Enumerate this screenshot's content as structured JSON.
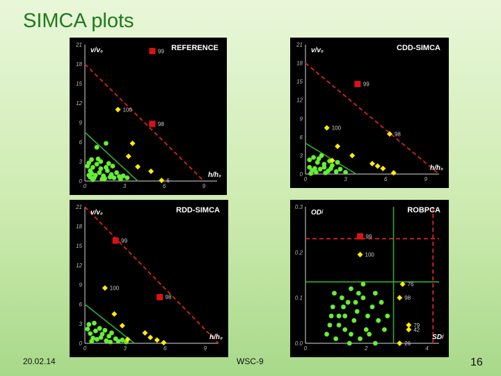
{
  "slide": {
    "title": "SIMCA plots",
    "date": "20.02.14",
    "center_label": "WSC-9",
    "page_number": "16"
  },
  "colors": {
    "panel_bg": "#000000",
    "regular_points": "#66ee33",
    "flagged_points": "#ffee00",
    "extreme_points": "#dd1111",
    "green_boundary": "#33aa33",
    "red_boundary": "#dd2222"
  },
  "chart_data": [
    {
      "type": "scatter",
      "title": "REFERENCE",
      "xlabel": "h/h₀",
      "ylabel": "v/v₀",
      "xlim": [
        0,
        10
      ],
      "ylim": [
        0,
        21
      ],
      "xticks": [
        0,
        3,
        6,
        9
      ],
      "yticks": [
        0,
        3,
        6,
        9,
        12,
        15,
        18,
        21
      ],
      "boundary_green": [
        [
          0,
          7.5
        ],
        [
          4,
          0
        ]
      ],
      "boundary_red": [
        [
          0,
          18
        ],
        [
          9,
          0
        ]
      ],
      "regular": [
        [
          0.3,
          2.8
        ],
        [
          0.5,
          3.3
        ],
        [
          0.9,
          2.6
        ],
        [
          0.4,
          1.6
        ],
        [
          1.2,
          1.9
        ],
        [
          1.6,
          2.1
        ],
        [
          2.1,
          2.3
        ],
        [
          0.7,
          0.5
        ],
        [
          1.4,
          0.8
        ],
        [
          1.9,
          0.6
        ],
        [
          2.6,
          0.7
        ],
        [
          0.4,
          0.6
        ],
        [
          1.1,
          1.3
        ],
        [
          1.7,
          1.6
        ],
        [
          2.4,
          1.3
        ],
        [
          2.9,
          0.8
        ],
        [
          0.8,
          0.9
        ],
        [
          0.6,
          2.1
        ],
        [
          1.5,
          0.4
        ],
        [
          0.3,
          0.9
        ],
        [
          1.0,
          3.4
        ],
        [
          2.2,
          0.5
        ],
        [
          1.6,
          5.8
        ],
        [
          0.9,
          5.2
        ],
        [
          1.2,
          3.0
        ],
        [
          0.6,
          0.2
        ],
        [
          2.0,
          1.0
        ],
        [
          2.7,
          0.3
        ],
        [
          0.5,
          1.2
        ],
        [
          1.3,
          0.3
        ],
        [
          1.8,
          2.7
        ],
        [
          3.2,
          0.5
        ],
        [
          0.2,
          2.3
        ]
      ],
      "flagged": [
        {
          "x": 2.5,
          "y": 11.0,
          "label": "100"
        },
        {
          "x": 3.6,
          "y": 5.8,
          "label": ""
        },
        {
          "x": 3.3,
          "y": 3.8,
          "label": ""
        },
        {
          "x": 4.0,
          "y": 2.2,
          "label": ""
        },
        {
          "x": 5.0,
          "y": 1.5,
          "label": ""
        },
        {
          "x": 5.8,
          "y": 0.1,
          "label": "6"
        }
      ],
      "extreme": [
        {
          "x": 5.1,
          "y": 20.0,
          "label": "99"
        },
        {
          "x": 5.1,
          "y": 8.8,
          "label": "98"
        }
      ]
    },
    {
      "type": "scatter",
      "title": "CDD-SIMCA",
      "xlabel": "h/h₀",
      "ylabel": "v/v₀",
      "xlim": [
        0,
        10
      ],
      "ylim": [
        0,
        21
      ],
      "xticks": [
        0,
        3,
        6,
        9
      ],
      "yticks": [
        0,
        3,
        6,
        9,
        12,
        15,
        18,
        21
      ],
      "boundary_green": [
        [
          0,
          5.0
        ],
        [
          3.8,
          0
        ]
      ],
      "boundary_red": [
        [
          0,
          18
        ],
        [
          10,
          0
        ]
      ],
      "regular": [
        [
          0.3,
          2.3
        ],
        [
          0.6,
          2.7
        ],
        [
          0.9,
          1.9
        ],
        [
          1.4,
          1.6
        ],
        [
          1.8,
          2.1
        ],
        [
          0.5,
          0.6
        ],
        [
          1.1,
          0.8
        ],
        [
          1.7,
          0.5
        ],
        [
          2.3,
          0.4
        ],
        [
          0.8,
          0.3
        ],
        [
          1.4,
          1.1
        ],
        [
          2.0,
          1.4
        ],
        [
          2.6,
          0.8
        ],
        [
          0.3,
          1.1
        ],
        [
          1.0,
          2.5
        ],
        [
          3.0,
          0.3
        ],
        [
          1.2,
          3.0
        ],
        [
          0.7,
          0.9
        ],
        [
          2.4,
          1.9
        ],
        [
          1.9,
          0.9
        ],
        [
          1.5,
          0.2
        ],
        [
          0.4,
          0.1
        ]
      ],
      "flagged": [
        {
          "x": 1.6,
          "y": 7.5,
          "label": "100"
        },
        {
          "x": 2.4,
          "y": 4.5,
          "label": ""
        },
        {
          "x": 2.0,
          "y": 2.2,
          "label": ""
        },
        {
          "x": 3.5,
          "y": 3.0,
          "label": ""
        },
        {
          "x": 6.3,
          "y": 6.5,
          "label": "98"
        },
        {
          "x": 5.0,
          "y": 1.7,
          "label": ""
        },
        {
          "x": 5.4,
          "y": 1.3,
          "label": ""
        },
        {
          "x": 5.8,
          "y": 0.9,
          "label": ""
        },
        {
          "x": 6.6,
          "y": 0.2,
          "label": ""
        }
      ],
      "extreme": [
        {
          "x": 3.9,
          "y": 14.6,
          "label": "99"
        }
      ]
    },
    {
      "type": "scatter",
      "title": "RDD-SIMCA",
      "xlabel": "h/h₀",
      "ylabel": "v/v₀",
      "xlim": [
        0,
        10
      ],
      "ylim": [
        0,
        21
      ],
      "xticks": [
        0,
        3,
        6,
        9
      ],
      "yticks": [
        0,
        3,
        6,
        9,
        12,
        15,
        18,
        21
      ],
      "boundary_green": [
        [
          0,
          6.0
        ],
        [
          3.7,
          0
        ]
      ],
      "boundary_red": [
        [
          0,
          21
        ],
        [
          10,
          0
        ]
      ],
      "regular": [
        [
          0.3,
          2.9
        ],
        [
          0.7,
          3.1
        ],
        [
          1.1,
          2.3
        ],
        [
          0.4,
          1.5
        ],
        [
          1.3,
          1.4
        ],
        [
          1.8,
          1.1
        ],
        [
          2.3,
          0.7
        ],
        [
          0.9,
          0.6
        ],
        [
          1.6,
          0.4
        ],
        [
          2.8,
          0.5
        ],
        [
          0.5,
          0.3
        ],
        [
          1.2,
          0.9
        ],
        [
          2.0,
          1.6
        ],
        [
          0.2,
          2.2
        ],
        [
          1.5,
          2.0
        ],
        [
          0.8,
          1.9
        ],
        [
          2.5,
          0.3
        ],
        [
          3.1,
          0.2
        ],
        [
          0.6,
          0.8
        ],
        [
          1.9,
          0.2
        ]
      ],
      "flagged": [
        {
          "x": 1.5,
          "y": 8.5,
          "label": "100"
        },
        {
          "x": 2.2,
          "y": 4.5,
          "label": ""
        },
        {
          "x": 2.8,
          "y": 2.7,
          "label": ""
        },
        {
          "x": 3.2,
          "y": 0.6,
          "label": ""
        },
        {
          "x": 4.5,
          "y": 1.6,
          "label": ""
        },
        {
          "x": 4.9,
          "y": 0.9,
          "label": ""
        },
        {
          "x": 5.4,
          "y": 0.5,
          "label": ""
        },
        {
          "x": 5.9,
          "y": 0.1,
          "label": ""
        }
      ],
      "extreme": [
        {
          "x": 2.3,
          "y": 15.8,
          "label": "99"
        },
        {
          "x": 5.6,
          "y": 7.1,
          "label": "98"
        }
      ]
    },
    {
      "type": "scatter",
      "title": "ROBPCA",
      "xlabel": "SDʲ",
      "ylabel": "ODʲ",
      "xlim": [
        0,
        4.4
      ],
      "ylim": [
        0,
        0.3
      ],
      "xticks": [
        0,
        2,
        4
      ],
      "xtick_labels": [
        "0",
        "2",
        "4"
      ],
      "yticks": [
        0,
        0.1,
        0.2,
        0.3
      ],
      "ytick_labels": [
        "0.0",
        "0.1",
        "0.2",
        "0.3"
      ],
      "cutoff_green_x": 2.9,
      "cutoff_green_y": 0.135,
      "cutoff_red_x": 4.2,
      "cutoff_red_y": 0.23,
      "regular": [
        [
          0.9,
          0.08
        ],
        [
          1.1,
          0.06
        ],
        [
          1.4,
          0.09
        ],
        [
          1.7,
          0.07
        ],
        [
          1.9,
          0.1
        ],
        [
          2.2,
          0.08
        ],
        [
          0.8,
          0.04
        ],
        [
          1.3,
          0.03
        ],
        [
          1.6,
          0.05
        ],
        [
          2.0,
          0.03
        ],
        [
          2.4,
          0.05
        ],
        [
          1.2,
          0.1
        ],
        [
          1.5,
          0.12
        ],
        [
          1.9,
          0.13
        ],
        [
          2.3,
          0.11
        ],
        [
          0.7,
          0.02
        ],
        [
          1.0,
          0.01
        ],
        [
          1.5,
          0.02
        ],
        [
          2.1,
          0.02
        ],
        [
          2.6,
          0.03
        ],
        [
          1.8,
          0.01
        ],
        [
          1.3,
          0.06
        ],
        [
          0.95,
          0.11
        ],
        [
          2.5,
          0.09
        ],
        [
          1.1,
          0.04
        ],
        [
          1.65,
          0.09
        ],
        [
          2.05,
          0.06
        ],
        [
          2.7,
          0.06
        ],
        [
          0.85,
          0.06
        ],
        [
          1.45,
          0.0
        ],
        [
          1.75,
          0.11
        ],
        [
          1.25,
          0.08
        ],
        [
          2.3,
          0.0
        ]
      ],
      "flagged": [
        {
          "x": 1.8,
          "y": 0.195,
          "label": "100"
        },
        {
          "x": 3.2,
          "y": 0.13,
          "label": "76"
        },
        {
          "x": 3.1,
          "y": 0.1,
          "label": "98"
        },
        {
          "x": 3.4,
          "y": 0.04,
          "label": "79"
        },
        {
          "x": 3.4,
          "y": 0.03,
          "label": "42"
        },
        {
          "x": 3.1,
          "y": 0.0,
          "label": "26"
        }
      ],
      "extreme": [
        {
          "x": 1.8,
          "y": 0.235,
          "label": "99"
        }
      ]
    }
  ]
}
